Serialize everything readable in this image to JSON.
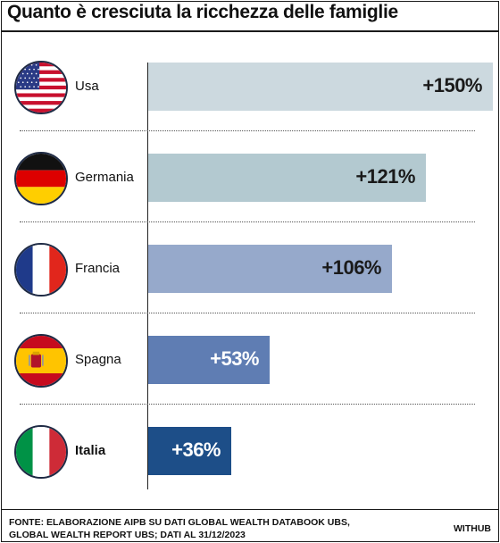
{
  "chart_data": {
    "type": "bar",
    "title": "Quanto è cresciuta la ricchezza delle famiglie",
    "categories": [
      "Usa",
      "Germania",
      "Francia",
      "Spagna",
      "Italia"
    ],
    "values": [
      150,
      121,
      106,
      53,
      36
    ],
    "value_labels": [
      "+150%",
      "+121%",
      "+106%",
      "+53%",
      "+36%"
    ],
    "highlight": "Italia",
    "bar_colors": [
      "#ccd9df",
      "#b3c9d0",
      "#96a9cb",
      "#5f7db3",
      "#1d4e88"
    ],
    "label_colors": [
      "#1a1a1a",
      "#1a1a1a",
      "#1a1a1a",
      "#ffffff",
      "#ffffff"
    ],
    "flags": [
      "usa-flag-icon",
      "germany-flag-icon",
      "france-flag-icon",
      "spain-flag-icon",
      "italy-flag-icon"
    ],
    "orientation": "horizontal",
    "grid": false,
    "xlim": [
      0,
      150
    ]
  },
  "footer": {
    "source_line1": "FONTE: ELABORAZIONE AIPB SU DATI GLOBAL WEALTH DATABOOK UBS,",
    "source_line2": "GLOBAL WEALTH REPORT UBS; DATI AL 31/12/2023",
    "credit": "WITHUB"
  }
}
